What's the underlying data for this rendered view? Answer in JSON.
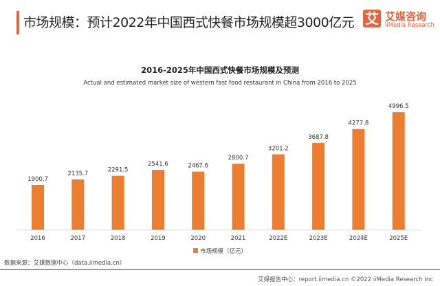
{
  "header": {
    "title": "市场规模：预计2022年中国西式快餐市场规模超3000亿元",
    "logo_cn": "艾媒咨询",
    "logo_en": "iiMedia Research",
    "logo_mark": "艾"
  },
  "chart_data": {
    "type": "bar",
    "title": "2016-2025年中国西式快餐市场规模及预测",
    "subtitle": "Actual and estimated market size of western fast food restaurant in China from 2016 to 2025",
    "categories": [
      "2016",
      "2017",
      "2018",
      "2019",
      "2020",
      "2021",
      "2022E",
      "2023E",
      "2024E",
      "2025E"
    ],
    "series": [
      {
        "name": "市场规模（亿元）",
        "values": [
          1900.7,
          2135.7,
          2291.5,
          2541.6,
          2467.6,
          2800.7,
          3201.2,
          3687.8,
          4277.8,
          4996.5
        ],
        "color": "#ed7d31"
      }
    ],
    "ylim": [
      0,
      5000
    ],
    "grid": false,
    "legend": "bottom"
  },
  "footer": {
    "source": "数据来源：艾媒数据中心（data.iimedia.cn）",
    "report": "艾媒报告中心：report.iimedia.cn   ©2022 iiMedia Research Inc"
  }
}
